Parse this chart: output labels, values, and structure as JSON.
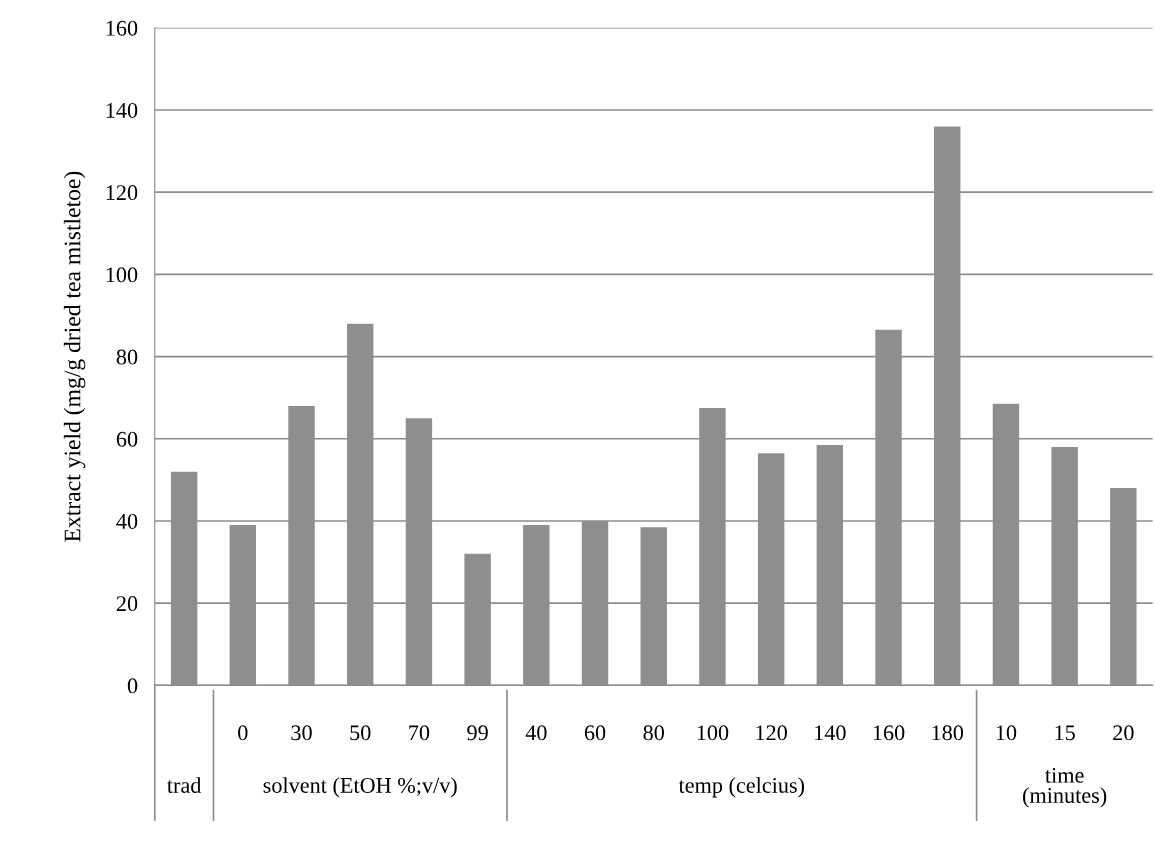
{
  "chart_data": {
    "type": "bar",
    "ylabel": "Extract yield (mg/g dried tea mistletoe)",
    "categories": [
      null,
      "0",
      "30",
      "50",
      "70",
      "99",
      "40",
      "60",
      "80",
      "100",
      "120",
      "140",
      "160",
      "180",
      "10",
      "15",
      "20"
    ],
    "values": [
      52,
      39,
      68,
      88,
      65,
      32,
      39,
      40,
      38.5,
      67.5,
      56.5,
      58.5,
      86.5,
      136,
      68.5,
      58,
      48
    ],
    "color": "#8e8e8e",
    "ylim": [
      0,
      160
    ],
    "yticks": [
      0,
      20,
      40,
      60,
      80,
      100,
      120,
      140,
      160
    ],
    "grid": "y",
    "annotations": [
      "trad",
      "solvent (EtOH %;v/v)",
      "temp (celcius)",
      "time\n(minutes)"
    ]
  }
}
